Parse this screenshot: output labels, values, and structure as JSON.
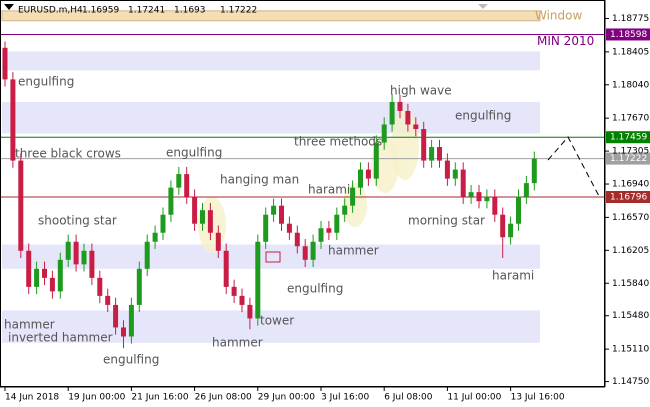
{
  "chart_data": {
    "type": "candlestick",
    "title": "EURUSD.m,H4",
    "quote": [
      1.16959,
      1.17241,
      1.1693,
      1.17222
    ],
    "categories": [
      "14 Jun 2018",
      null,
      null,
      null,
      null,
      null,
      null,
      null,
      "19 Jun 00:00",
      null,
      null,
      null,
      null,
      null,
      null,
      null,
      "21 Jun 16:00",
      null,
      null,
      null,
      null,
      null,
      null,
      null,
      "26 Jun 08:00",
      null,
      null,
      null,
      null,
      null,
      null,
      null,
      "29 Jun 00:00",
      null,
      null,
      null,
      null,
      null,
      null,
      null,
      "3 Jul 16:00",
      null,
      null,
      null,
      null,
      null,
      null,
      null,
      "6 Jul 08:00",
      null,
      null,
      null,
      null,
      null,
      null,
      null,
      "11 Jul 00:00",
      null,
      null,
      null,
      null,
      null,
      null,
      null,
      "13 Jul 16:00",
      null,
      null,
      null
    ],
    "open": [
      1.1845,
      1.181,
      1.172,
      1.162,
      1.158,
      1.16,
      1.159,
      1.1575,
      1.161,
      1.163,
      1.1605,
      1.162,
      1.159,
      1.157,
      1.156,
      1.1535,
      1.1525,
      1.156,
      1.16,
      1.163,
      1.164,
      1.166,
      1.169,
      1.1705,
      1.168,
      1.165,
      1.1665,
      1.164,
      1.162,
      1.158,
      1.157,
      1.156,
      1.1545,
      1.163,
      1.166,
      1.167,
      1.165,
      1.164,
      1.1625,
      1.161,
      1.163,
      1.1645,
      1.164,
      1.166,
      1.167,
      1.169,
      1.171,
      1.17,
      1.174,
      1.176,
      1.1785,
      1.1775,
      1.176,
      1.1755,
      1.172,
      1.1735,
      1.172,
      1.17,
      1.171,
      1.168,
      1.1685,
      1.1675,
      1.168,
      1.166,
      1.1635,
      1.165,
      1.168,
      1.1695
    ],
    "high": [
      1.1852,
      1.1818,
      1.1728,
      1.1628,
      1.1608,
      1.1608,
      1.1598,
      1.1618,
      1.1638,
      1.1638,
      1.1628,
      1.1628,
      1.1598,
      1.1578,
      1.1568,
      1.1543,
      1.1568,
      1.1608,
      1.1638,
      1.1648,
      1.1668,
      1.1698,
      1.1713,
      1.1713,
      1.1688,
      1.1673,
      1.1673,
      1.1648,
      1.1628,
      1.1588,
      1.1578,
      1.1568,
      1.1638,
      1.1668,
      1.1678,
      1.1678,
      1.1658,
      1.1648,
      1.1633,
      1.1638,
      1.1653,
      1.1653,
      1.1668,
      1.1678,
      1.1698,
      1.1718,
      1.1718,
      1.1748,
      1.1768,
      1.1794,
      1.1793,
      1.1783,
      1.1768,
      1.1763,
      1.1743,
      1.1743,
      1.1728,
      1.1718,
      1.1718,
      1.1693,
      1.1693,
      1.1688,
      1.1688,
      1.1668,
      1.1658,
      1.1688,
      1.1703,
      1.173
    ],
    "low": [
      1.1802,
      1.1712,
      1.1612,
      1.1572,
      1.1572,
      1.1582,
      1.1567,
      1.1567,
      1.1602,
      1.1597,
      1.1597,
      1.1582,
      1.1562,
      1.1552,
      1.1527,
      1.1512,
      1.1517,
      1.1552,
      1.1592,
      1.1622,
      1.1632,
      1.1652,
      1.1682,
      1.1672,
      1.1642,
      1.1642,
      1.1632,
      1.1612,
      1.1572,
      1.1562,
      1.1552,
      1.1533,
      1.1537,
      1.1622,
      1.1652,
      1.1642,
      1.1632,
      1.1617,
      1.1602,
      1.1602,
      1.1622,
      1.1632,
      1.1632,
      1.1652,
      1.1662,
      1.1682,
      1.1692,
      1.1692,
      1.1732,
      1.1752,
      1.1767,
      1.1752,
      1.1747,
      1.1712,
      1.1712,
      1.1712,
      1.1692,
      1.1692,
      1.1672,
      1.1672,
      1.1667,
      1.1667,
      1.1652,
      1.1612,
      1.1627,
      1.1642,
      1.1672,
      1.1687
    ],
    "close": [
      1.181,
      1.172,
      1.162,
      1.158,
      1.16,
      1.159,
      1.1575,
      1.161,
      1.163,
      1.1605,
      1.162,
      1.159,
      1.157,
      1.156,
      1.1535,
      1.1525,
      1.156,
      1.16,
      1.163,
      1.164,
      1.166,
      1.169,
      1.1705,
      1.168,
      1.165,
      1.1665,
      1.164,
      1.162,
      1.158,
      1.157,
      1.156,
      1.1545,
      1.163,
      1.166,
      1.167,
      1.165,
      1.164,
      1.1625,
      1.161,
      1.163,
      1.1645,
      1.164,
      1.166,
      1.167,
      1.169,
      1.171,
      1.17,
      1.174,
      1.176,
      1.1785,
      1.1775,
      1.176,
      1.1755,
      1.172,
      1.1735,
      1.172,
      1.17,
      1.171,
      1.168,
      1.1685,
      1.1675,
      1.168,
      1.166,
      1.1635,
      1.165,
      1.168,
      1.1695,
      1.17222
    ],
    "up_color": "#1e9b1e",
    "down_color": "#c81e46",
    "ylim": [
      1.1469,
      1.1898
    ],
    "yticks": [
      1.18775,
      1.18405,
      {
        "value": 1.1804,
        "label": "1.18040"
      },
      {
        "value": 1.1767,
        "label": "1.17670"
      },
      1.17305,
      {
        "value": 1.1694,
        "label": "1.16940"
      },
      {
        "value": 1.1657,
        "label": "1.16570"
      },
      1.16205,
      {
        "value": 1.1584,
        "label": "1.15840"
      },
      {
        "value": 1.1548,
        "label": "1.15480"
      },
      {
        "value": 1.1511,
        "label": "1.15110"
      },
      {
        "value": 1.1475,
        "label": "1.14750"
      }
    ],
    "levels": [
      {
        "value": 1.18598,
        "name": "MIN 2010",
        "color": "#800080"
      },
      {
        "value": 1.17459,
        "color": "#008000"
      },
      {
        "value": 1.17222,
        "color": "#a0a0a0"
      },
      {
        "value": 1.16796,
        "color": "#a52a2a"
      }
    ],
    "zones": [
      {
        "range": [
          1.1886,
          1.1875
        ],
        "name": "Window",
        "color": "#f5deb3"
      },
      {
        "range": [
          1.1841,
          1.182
        ],
        "color": "#e6e6fa"
      },
      {
        "range": [
          1.1785,
          1.175
        ],
        "color": "#e6e6fa"
      },
      {
        "range": [
          1.1627,
          1.16
        ],
        "color": "#e6e6fa"
      },
      {
        "range": [
          1.1554,
          1.1518
        ],
        "color": "#e6e6fa"
      }
    ],
    "annotations": [
      "engulfing",
      "three black crows",
      "shooting star",
      "hammer",
      "inverted hammer",
      "engulfing",
      "engulfing",
      "hanging man",
      "hammer",
      "tower",
      "engulfing",
      "harami",
      "hammer",
      "three methods",
      "high wave",
      "engulfing",
      "morning star",
      "harami"
    ]
  }
}
